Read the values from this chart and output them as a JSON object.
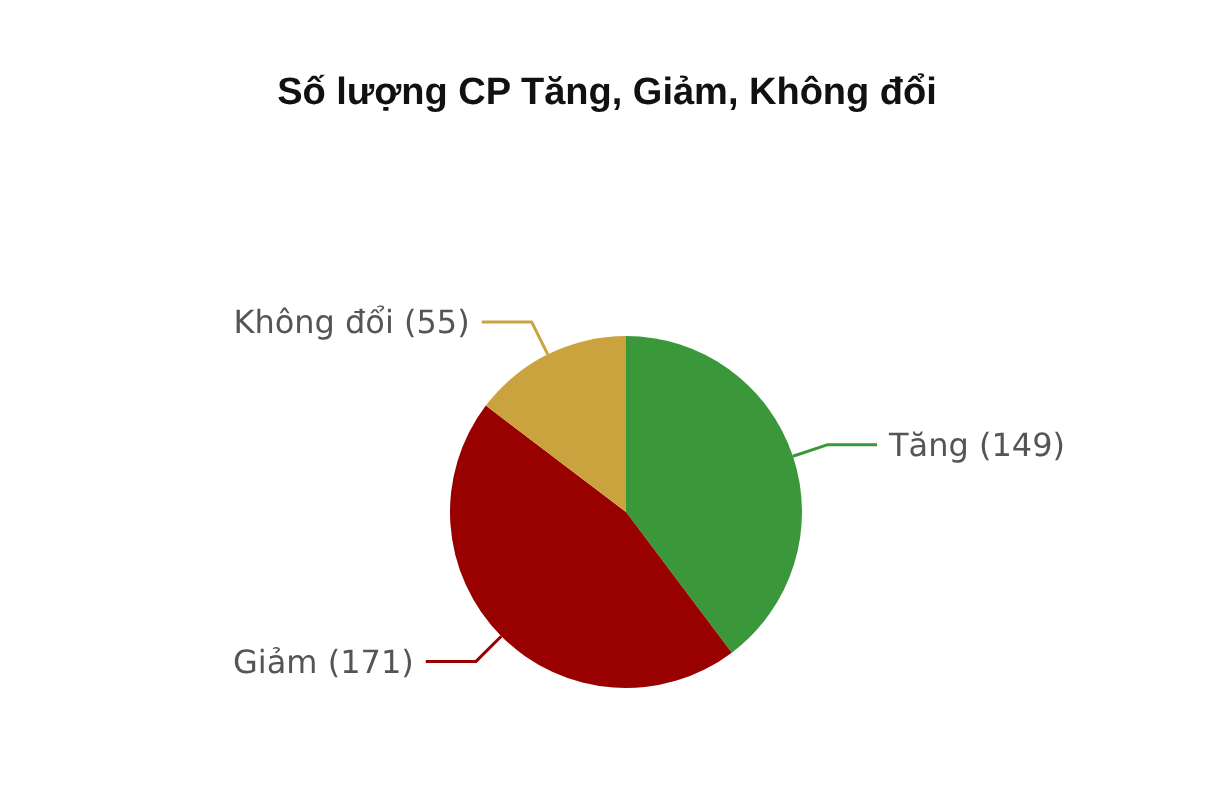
{
  "chart_data": {
    "type": "pie",
    "title": "Số lượng CP Tăng, Giảm, Không đổi",
    "categories": [
      "Tăng",
      "Giảm",
      "Không đổi"
    ],
    "values": [
      149,
      171,
      55
    ],
    "colors": [
      "#3a983a",
      "#990000",
      "#cba33e"
    ],
    "value_labels": [
      "(149)",
      "(171)",
      "(55)"
    ],
    "legend": false
  }
}
